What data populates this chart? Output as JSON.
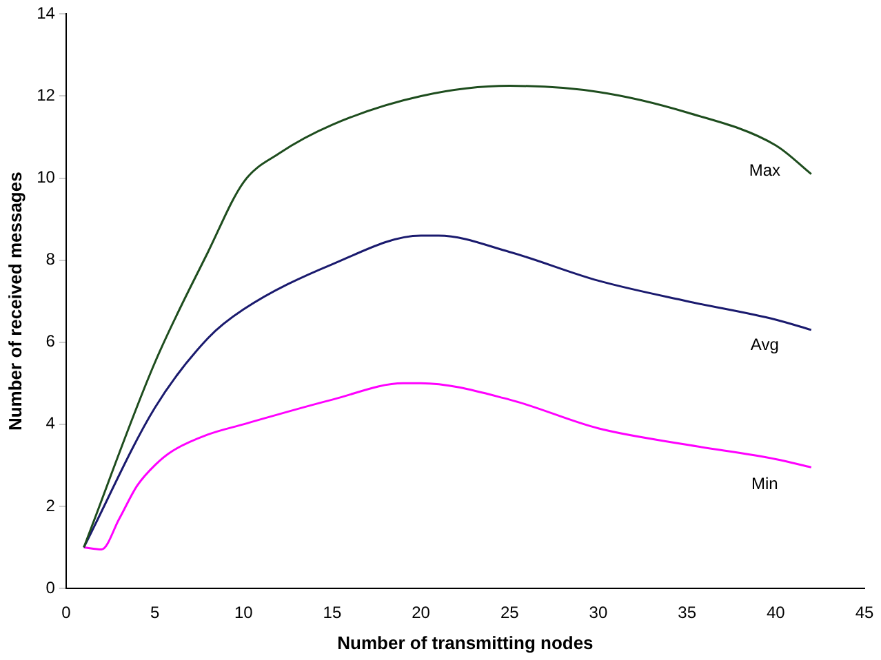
{
  "chart_data": {
    "type": "line",
    "xlabel": "Number of transmitting nodes",
    "ylabel": "Number of received messages",
    "xlim": [
      0,
      45
    ],
    "xticks": [
      0,
      5,
      10,
      15,
      20,
      25,
      30,
      35,
      40,
      45
    ],
    "ylim": [
      0,
      14
    ],
    "yticks": [
      0,
      2,
      4,
      6,
      8,
      10,
      12,
      14
    ],
    "grid": false,
    "legend": false,
    "marker": "none",
    "line_style": "solid",
    "series": [
      {
        "name": "Max",
        "color": "#1e4d1e",
        "x": [
          1,
          5,
          8,
          10,
          12,
          15,
          20,
          25,
          30,
          35,
          40,
          42
        ],
        "values": [
          1,
          5.5,
          8.2,
          9.9,
          10.6,
          11.3,
          12.0,
          12.25,
          12.1,
          11.6,
          10.8,
          10.1
        ]
      },
      {
        "name": "Avg",
        "color": "#1a1a6e",
        "x": [
          1,
          5,
          8,
          10,
          15,
          20,
          21,
          25,
          30,
          35,
          40,
          42
        ],
        "values": [
          1,
          4.4,
          6.1,
          6.8,
          7.9,
          8.6,
          8.6,
          8.2,
          7.5,
          7.0,
          6.55,
          6.3
        ]
      },
      {
        "name": "Min",
        "color": "#ff00ff",
        "x": [
          1,
          2,
          3,
          4,
          5,
          6,
          8,
          10,
          15,
          19,
          20,
          25,
          30,
          35,
          40,
          42
        ],
        "values": [
          1,
          0.95,
          1.7,
          2.5,
          3.0,
          3.35,
          3.75,
          4.0,
          4.6,
          5.0,
          5.0,
          4.6,
          3.9,
          3.5,
          3.15,
          2.95
        ]
      }
    ]
  }
}
